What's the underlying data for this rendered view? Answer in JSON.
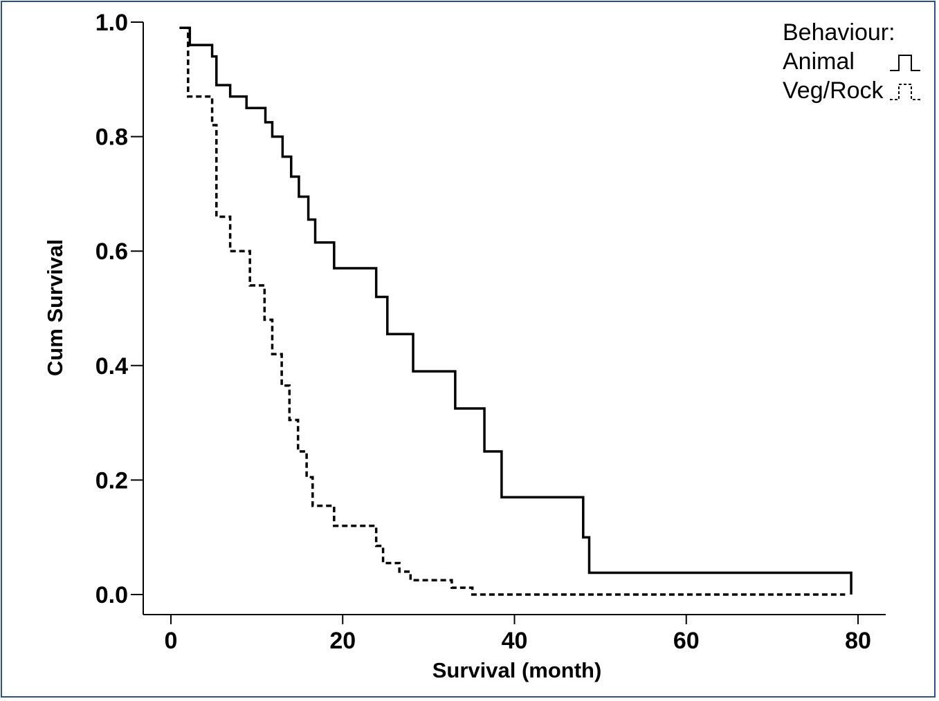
{
  "chart_data": {
    "type": "line",
    "step": true,
    "xlabel": "Survival (month)",
    "ylabel": "Cum Survival",
    "xlim": [
      0,
      80
    ],
    "ylim": [
      0.0,
      1.0
    ],
    "xticks": [
      0,
      20,
      40,
      60,
      80
    ],
    "yticks": [
      0.0,
      0.2,
      0.4,
      0.6,
      0.8,
      1.0
    ],
    "xtick_labels": [
      "0",
      "20",
      "40",
      "60",
      "80"
    ],
    "ytick_labels": [
      "0.0",
      "0.2",
      "0.4",
      "0.6",
      "0.8",
      "1.0"
    ],
    "grid": false,
    "legend": {
      "title": "Behaviour:",
      "placement": "top-right",
      "entries": [
        "Animal",
        "Veg/Rock"
      ]
    },
    "series": [
      {
        "name": "Animal",
        "style": "solid",
        "color": "#000000",
        "points": [
          [
            1.0,
            0.99
          ],
          [
            2.2,
            0.96
          ],
          [
            4.8,
            0.94
          ],
          [
            5.3,
            0.89
          ],
          [
            6.9,
            0.87
          ],
          [
            8.8,
            0.85
          ],
          [
            11.0,
            0.825
          ],
          [
            11.8,
            0.8
          ],
          [
            13.0,
            0.765
          ],
          [
            14.0,
            0.73
          ],
          [
            14.9,
            0.695
          ],
          [
            16.0,
            0.655
          ],
          [
            16.8,
            0.615
          ],
          [
            19.0,
            0.57
          ],
          [
            23.9,
            0.52
          ],
          [
            25.2,
            0.455
          ],
          [
            28.2,
            0.39
          ],
          [
            33.1,
            0.325
          ],
          [
            36.5,
            0.25
          ],
          [
            38.5,
            0.17
          ],
          [
            48.0,
            0.1
          ],
          [
            48.7,
            0.038
          ],
          [
            79.2,
            0.0
          ]
        ]
      },
      {
        "name": "Veg/Rock",
        "style": "dashed",
        "color": "#000000",
        "points": [
          [
            1.5,
            0.99
          ],
          [
            2.0,
            0.87
          ],
          [
            4.8,
            0.82
          ],
          [
            5.3,
            0.66
          ],
          [
            6.9,
            0.6
          ],
          [
            9.2,
            0.54
          ],
          [
            10.9,
            0.48
          ],
          [
            11.8,
            0.42
          ],
          [
            12.9,
            0.365
          ],
          [
            13.8,
            0.305
          ],
          [
            14.8,
            0.25
          ],
          [
            15.8,
            0.205
          ],
          [
            16.5,
            0.155
          ],
          [
            19.0,
            0.12
          ],
          [
            23.9,
            0.085
          ],
          [
            24.7,
            0.055
          ],
          [
            26.6,
            0.04
          ],
          [
            27.9,
            0.025
          ],
          [
            32.7,
            0.012
          ],
          [
            35.1,
            0.0
          ],
          [
            78.5,
            0.0
          ]
        ]
      }
    ]
  }
}
